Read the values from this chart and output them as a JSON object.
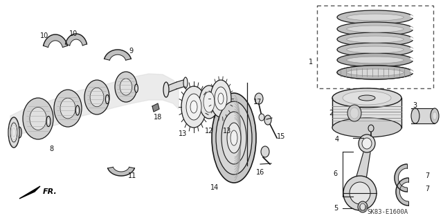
{
  "background_color": "#ffffff",
  "fig_width": 6.4,
  "fig_height": 3.19,
  "dpi": 100,
  "label_fontsize": 7.0,
  "watermark": "SK83-E1600A",
  "line_color": "#1a1a1a",
  "text_color": "#111111"
}
